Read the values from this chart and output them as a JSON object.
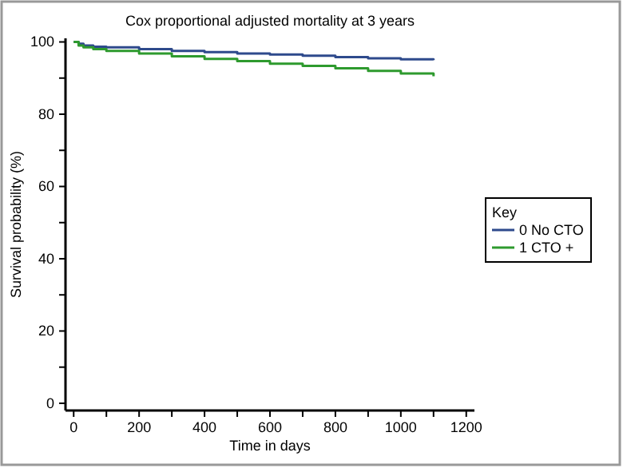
{
  "chart_data": {
    "type": "step",
    "title": "Cox proportional adjusted mortality at 3 years",
    "xlabel": "Time in days",
    "ylabel": "Survival probability (%)",
    "legend_title": "Key",
    "legend": "right",
    "xlim": [
      -25,
      1225
    ],
    "ylim": [
      -2,
      101
    ],
    "xticks": [
      0,
      {
        "value": 100,
        "label": null
      },
      200,
      {
        "value": 300,
        "label": null
      },
      400,
      {
        "value": 500,
        "label": null
      },
      600,
      {
        "value": 700,
        "label": null
      },
      800,
      {
        "value": 900,
        "label": null
      },
      1000,
      {
        "value": 1100,
        "label": null
      },
      1200
    ],
    "yticks": [
      0,
      {
        "value": 10,
        "label": null
      },
      20,
      {
        "value": 30,
        "label": null
      },
      40,
      {
        "value": 50,
        "label": null
      },
      60,
      {
        "value": 70,
        "label": null
      },
      80,
      {
        "value": 90,
        "label": null
      },
      100
    ],
    "x": [
      0,
      15,
      30,
      60,
      100,
      200,
      300,
      400,
      500,
      600,
      700,
      800,
      900,
      1000,
      1100
    ],
    "series": [
      {
        "name": "0 No CTO",
        "color": "#2e4a8c",
        "values": [
          100,
          99.5,
          99,
          98.7,
          98.5,
          98,
          97.5,
          97.2,
          96.8,
          96.5,
          96.2,
          95.8,
          95.5,
          95.2,
          95
        ]
      },
      {
        "name": "1 CTO +",
        "color": "#2e9a2e",
        "values": [
          100,
          99,
          98.5,
          98,
          97.5,
          96.8,
          96,
          95.3,
          94.7,
          94,
          93.4,
          92.7,
          92,
          91.3,
          90.5
        ]
      }
    ]
  }
}
